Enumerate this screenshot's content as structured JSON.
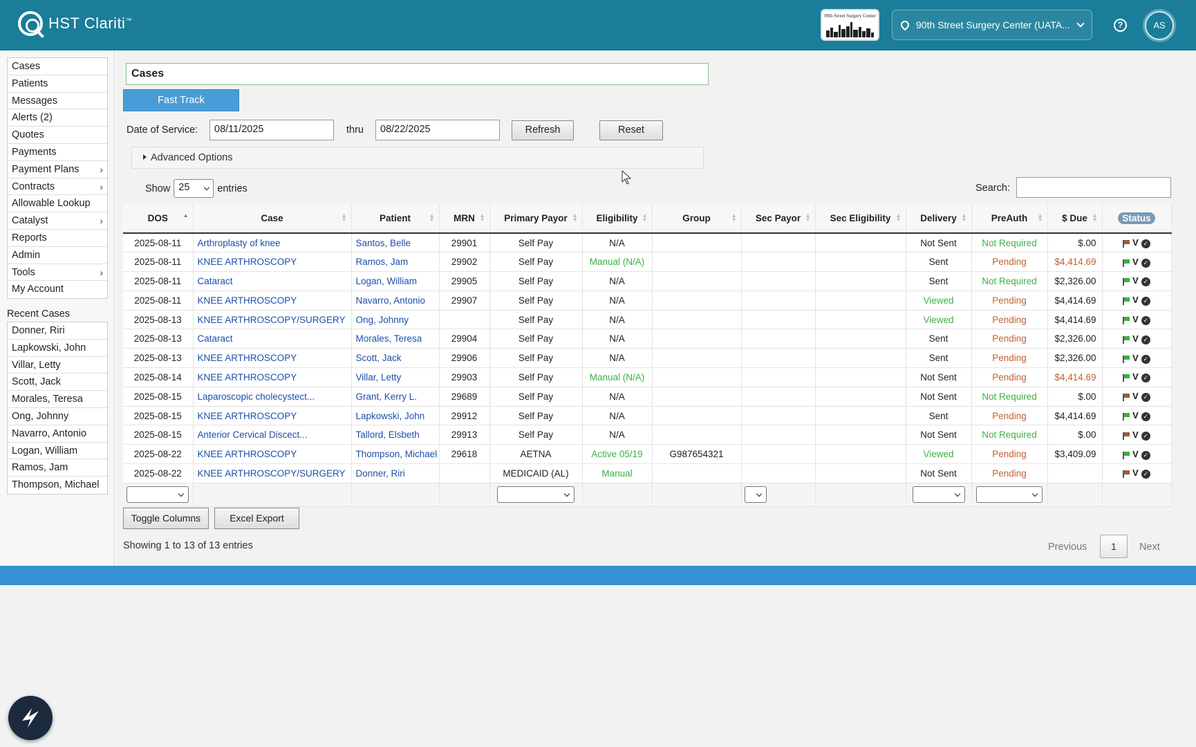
{
  "header": {
    "app_name": "HST Clariti",
    "trademark": "™",
    "facility_logo_text": "90th Street Surgery Center",
    "location": "90th Street Surgery Center (UATA...",
    "help_icon": "question-circle-icon",
    "avatar_initials": "AS",
    "colors": {
      "bar": "#1a7d99",
      "footer": "#3591d3"
    }
  },
  "sidebar": {
    "items": [
      {
        "label": "Cases",
        "arrow": ""
      },
      {
        "label": "Patients",
        "arrow": ""
      },
      {
        "label": "Messages",
        "arrow": ""
      },
      {
        "label": "Alerts (2)",
        "arrow": ""
      },
      {
        "label": "Quotes",
        "arrow": ""
      },
      {
        "label": "Payments",
        "arrow": ""
      },
      {
        "label": "Payment Plans",
        "arrow": "›"
      },
      {
        "label": "Contracts",
        "arrow": "›"
      },
      {
        "label": "Allowable Lookup",
        "arrow": ""
      },
      {
        "label": "Catalyst",
        "arrow": "›"
      },
      {
        "label": "Reports",
        "arrow": ""
      },
      {
        "label": "Admin",
        "arrow": ""
      },
      {
        "label": "Tools",
        "arrow": "›"
      },
      {
        "label": "My Account",
        "arrow": ""
      }
    ],
    "recent_title": "Recent Cases",
    "recent": [
      "Donner, Riri",
      "Lapkowski, John",
      "Villar, Letty",
      "Scott, Jack",
      "Morales, Teresa",
      "Ong, Johnny",
      "Navarro, Antonio",
      "Logan, William",
      "Ramos, Jam",
      "Thompson, Michael"
    ]
  },
  "main": {
    "page_title": "Cases",
    "fast_track": "Fast Track",
    "dos_label": "Date of Service:",
    "date_from": "08/11/2025",
    "thru": "thru",
    "date_to": "08/22/2025",
    "refresh": "Refresh",
    "reset": "Reset",
    "advanced": "Advanced Options",
    "show": "Show",
    "entries_value": "25",
    "entries": "entries",
    "search_label": "Search:",
    "toggle_columns": "Toggle Columns",
    "excel_export": "Excel Export",
    "showing": "Showing 1 to 13 of 13 entries",
    "previous": "Previous",
    "page": "1",
    "next": "Next"
  },
  "table": {
    "columns": [
      "DOS",
      "Case",
      "Patient",
      "MRN",
      "Primary Payor",
      "Eligibility",
      "Group",
      "Sec Payor",
      "Sec Eligibility",
      "Delivery",
      "PreAuth",
      "$ Due",
      "Status"
    ],
    "rows": [
      {
        "dos": "2025-08-11",
        "case": "Arthroplasty of knee",
        "patient": "Santos, Belle",
        "mrn": "29901",
        "payor": "Self Pay",
        "elig": "N/A",
        "elig_c": "",
        "group": "",
        "sec": "",
        "sec_elig": "",
        "delivery": "Not Sent",
        "del_c": "",
        "preauth": "Not Required",
        "pa_c": "g",
        "due": "$.00",
        "due_c": "",
        "flag": "brown"
      },
      {
        "dos": "2025-08-11",
        "case": "KNEE ARTHROSCOPY",
        "patient": "Ramos, Jam",
        "mrn": "29902",
        "payor": "Self Pay",
        "elig": "Manual (N/A)",
        "elig_c": "g",
        "group": "",
        "sec": "",
        "sec_elig": "",
        "delivery": "Sent",
        "del_c": "",
        "preauth": "Pending",
        "pa_c": "o",
        "due": "$4,414.69",
        "due_c": "o",
        "flag": "green"
      },
      {
        "dos": "2025-08-11",
        "case": "Cataract",
        "patient": "Logan, William",
        "mrn": "29905",
        "payor": "Self Pay",
        "elig": "N/A",
        "elig_c": "",
        "group": "",
        "sec": "",
        "sec_elig": "",
        "delivery": "Sent",
        "del_c": "",
        "preauth": "Not Required",
        "pa_c": "g",
        "due": "$2,326.00",
        "due_c": "",
        "flag": "green"
      },
      {
        "dos": "2025-08-11",
        "case": "KNEE ARTHROSCOPY",
        "patient": "Navarro, Antonio",
        "mrn": "29907",
        "payor": "Self Pay",
        "elig": "N/A",
        "elig_c": "",
        "group": "",
        "sec": "",
        "sec_elig": "",
        "delivery": "Viewed",
        "del_c": "g",
        "preauth": "Pending",
        "pa_c": "o",
        "due": "$4,414.69",
        "due_c": "",
        "flag": "green"
      },
      {
        "dos": "2025-08-13",
        "case": "KNEE ARTHROSCOPY/SURGERY",
        "patient": "Ong, Johnny",
        "mrn": "",
        "payor": "Self Pay",
        "elig": "N/A",
        "elig_c": "",
        "group": "",
        "sec": "",
        "sec_elig": "",
        "delivery": "Viewed",
        "del_c": "g",
        "preauth": "Pending",
        "pa_c": "o",
        "due": "$4,414.69",
        "due_c": "",
        "flag": "green"
      },
      {
        "dos": "2025-08-13",
        "case": "Cataract",
        "patient": "Morales, Teresa",
        "mrn": "29904",
        "payor": "Self Pay",
        "elig": "N/A",
        "elig_c": "",
        "group": "",
        "sec": "",
        "sec_elig": "",
        "delivery": "Sent",
        "del_c": "",
        "preauth": "Pending",
        "pa_c": "o",
        "due": "$2,326.00",
        "due_c": "",
        "flag": "green"
      },
      {
        "dos": "2025-08-13",
        "case": "KNEE ARTHROSCOPY",
        "patient": "Scott, Jack",
        "mrn": "29906",
        "payor": "Self Pay",
        "elig": "N/A",
        "elig_c": "",
        "group": "",
        "sec": "",
        "sec_elig": "",
        "delivery": "Sent",
        "del_c": "",
        "preauth": "Pending",
        "pa_c": "o",
        "due": "$2,326.00",
        "due_c": "",
        "flag": "green"
      },
      {
        "dos": "2025-08-14",
        "case": "KNEE ARTHROSCOPY",
        "patient": "Villar, Letty",
        "mrn": "29903",
        "payor": "Self Pay",
        "elig": "Manual (N/A)",
        "elig_c": "g",
        "group": "",
        "sec": "",
        "sec_elig": "",
        "delivery": "Not Sent",
        "del_c": "",
        "preauth": "Pending",
        "pa_c": "o",
        "due": "$4,414.69",
        "due_c": "o",
        "flag": "green"
      },
      {
        "dos": "2025-08-15",
        "case": "Laparoscopic cholecystect...",
        "patient": "Grant, Kerry L.",
        "mrn": "29689",
        "payor": "Self Pay",
        "elig": "N/A",
        "elig_c": "",
        "group": "",
        "sec": "",
        "sec_elig": "",
        "delivery": "Not Sent",
        "del_c": "",
        "preauth": "Not Required",
        "pa_c": "g",
        "due": "$.00",
        "due_c": "",
        "flag": "brown"
      },
      {
        "dos": "2025-08-15",
        "case": "KNEE ARTHROSCOPY",
        "patient": "Lapkowski, John",
        "mrn": "29912",
        "payor": "Self Pay",
        "elig": "N/A",
        "elig_c": "",
        "group": "",
        "sec": "",
        "sec_elig": "",
        "delivery": "Sent",
        "del_c": "",
        "preauth": "Pending",
        "pa_c": "o",
        "due": "$4,414.69",
        "due_c": "",
        "flag": "green"
      },
      {
        "dos": "2025-08-15",
        "case": "Anterior Cervical Discect...",
        "patient": "Tallord, Elsbeth",
        "mrn": "29913",
        "payor": "Self Pay",
        "elig": "N/A",
        "elig_c": "",
        "group": "",
        "sec": "",
        "sec_elig": "",
        "delivery": "Not Sent",
        "del_c": "",
        "preauth": "Not Required",
        "pa_c": "g",
        "due": "$.00",
        "due_c": "",
        "flag": "brown"
      },
      {
        "dos": "2025-08-22",
        "case": "KNEE ARTHROSCOPY",
        "patient": "Thompson, Michael",
        "mrn": "29618",
        "payor": "AETNA",
        "elig": "Active 05/19",
        "elig_c": "g",
        "group": "G987654321",
        "sec": "",
        "sec_elig": "",
        "delivery": "Viewed",
        "del_c": "g",
        "preauth": "Pending",
        "pa_c": "o",
        "due": "$3,409.09",
        "due_c": "",
        "flag": "green"
      },
      {
        "dos": "2025-08-22",
        "case": "KNEE ARTHROSCOPY/SURGERY",
        "patient": "Donner, Riri",
        "mrn": "",
        "payor": "MEDICAID (AL)",
        "elig": "Manual",
        "elig_c": "g",
        "group": "",
        "sec": "",
        "sec_elig": "",
        "delivery": "Not Sent",
        "del_c": "",
        "preauth": "Pending",
        "pa_c": "o",
        "due": "",
        "due_c": "",
        "flag": "brown"
      }
    ],
    "status_v": "V",
    "status_check": "✓"
  }
}
